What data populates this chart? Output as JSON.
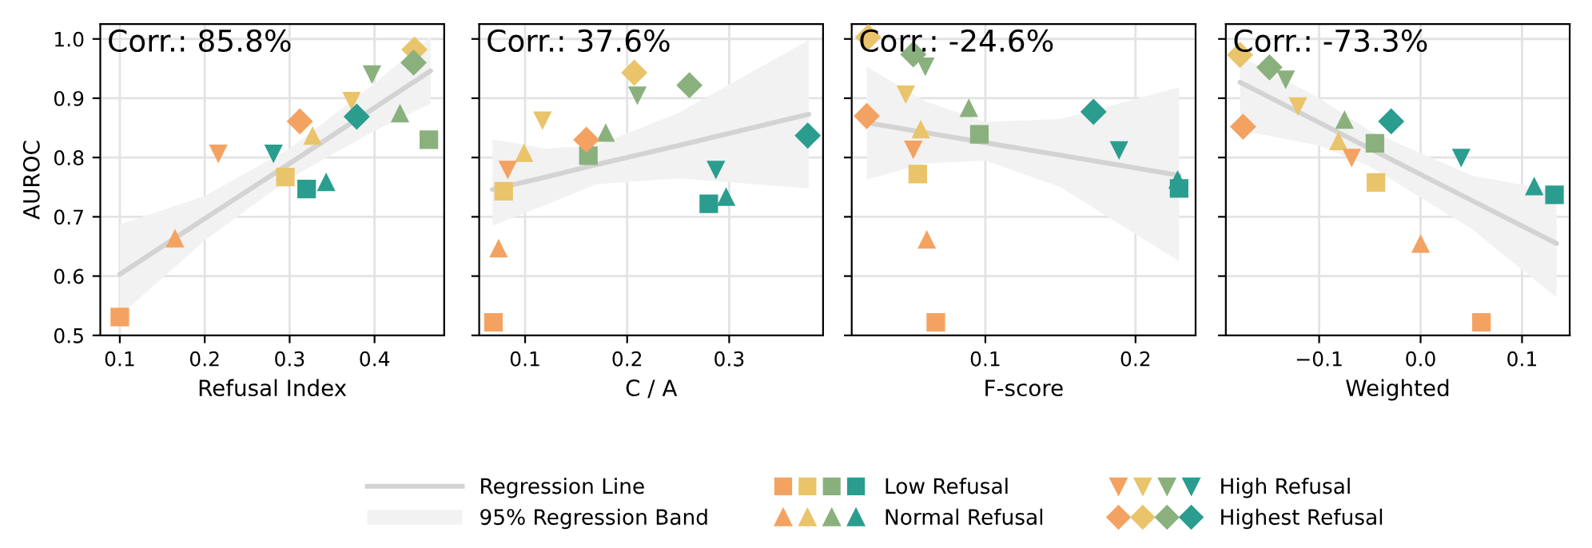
{
  "chart_data": [
    {
      "type": "scatter",
      "title": "Corr.: 85.8%",
      "xlabel": "Refusal Index",
      "ylabel": "AUROC",
      "xlim": [
        0.077,
        0.482
      ],
      "ylim": [
        0.5,
        1.025
      ],
      "xticks": [
        0.1,
        0.2,
        0.3,
        0.4
      ],
      "yticks": [
        0.5,
        0.6,
        0.7,
        0.8,
        0.9,
        {
          "value": 1.0,
          "label": "1.0"
        }
      ],
      "grid": true,
      "legend": "bottom",
      "annotations": [
        "95% Regression Band"
      ],
      "series": [
        {
          "name": "Regression Line",
          "type": "line",
          "color": "#d3d3d3",
          "x": [
            0.1,
            0.2,
            0.3,
            0.4,
            0.466
          ],
          "values": [
            0.603,
            0.697,
            0.79,
            0.884,
            0.946
          ],
          "lower": [
            0.533,
            0.66,
            0.765,
            0.845,
            0.891
          ],
          "upper": [
            0.687,
            0.735,
            0.815,
            0.925,
            1.003
          ]
        },
        {
          "name": "Low Refusal",
          "marker": "square",
          "color": "#808080",
          "x": [
            0.1,
            0.295,
            0.464,
            0.32
          ],
          "values": [
            0.531,
            0.767,
            0.83,
            0.747
          ],
          "colors": [
            "#f4a261",
            "#e9c46a",
            "#8ab17d",
            "#2a9d8f"
          ]
        },
        {
          "name": "Normal Refusal",
          "marker": "triangle",
          "color": "#808080",
          "x": [
            0.165,
            0.327,
            0.43,
            0.343
          ],
          "values": [
            0.664,
            0.837,
            0.875,
            0.759
          ],
          "colors": [
            "#f4a261",
            "#e9c46a",
            "#8ab17d",
            "#2a9d8f"
          ]
        },
        {
          "name": "High Refusal",
          "marker": "triangle_down",
          "color": "#808080",
          "x": [
            0.216,
            0.373,
            0.397,
            0.281
          ],
          "values": [
            0.806,
            0.895,
            0.94,
            0.806
          ],
          "colors": [
            "#f4a261",
            "#e9c46a",
            "#8ab17d",
            "#2a9d8f"
          ]
        },
        {
          "name": "Highest Refusal",
          "marker": "diamond",
          "color": "#808080",
          "x": [
            0.312,
            0.447,
            0.446,
            0.379
          ],
          "values": [
            0.861,
            0.982,
            0.96,
            0.869
          ],
          "colors": [
            "#f4a261",
            "#e9c46a",
            "#8ab17d",
            "#2a9d8f"
          ]
        }
      ]
    },
    {
      "type": "scatter",
      "title": "Corr.: 37.6%",
      "xlabel": "C / A",
      "xlim": [
        0.055,
        0.392
      ],
      "ylim": [
        0.5,
        1.025
      ],
      "xticks": [
        0.1,
        0.2,
        0.3
      ],
      "yticks": [
        0.5,
        0.6,
        0.7,
        0.8,
        0.9,
        1.0
      ],
      "tick_labels": "x",
      "grid": true,
      "series": [
        {
          "type": "line",
          "color": "#d3d3d3",
          "x": [
            0.068,
            0.12,
            0.17,
            0.25,
            0.378
          ],
          "values": [
            0.746,
            0.767,
            0.788,
            0.82,
            0.873
          ],
          "lower": [
            0.685,
            0.72,
            0.755,
            0.765,
            0.748
          ],
          "upper": [
            0.831,
            0.815,
            0.82,
            0.875,
            0.998
          ]
        },
        {
          "marker": "square",
          "color": "#808080",
          "x": [
            0.069,
            0.079,
            0.162,
            0.28
          ],
          "values": [
            0.522,
            0.743,
            0.803,
            0.722
          ],
          "colors": [
            "#f4a261",
            "#e9c46a",
            "#8ab17d",
            "#2a9d8f"
          ]
        },
        {
          "marker": "triangle",
          "color": "#808080",
          "x": [
            0.074,
            0.099,
            0.179,
            0.297
          ],
          "values": [
            0.647,
            0.808,
            0.842,
            0.734
          ],
          "colors": [
            "#f4a261",
            "#e9c46a",
            "#8ab17d",
            "#2a9d8f"
          ]
        },
        {
          "marker": "triangle_down",
          "color": "#808080",
          "x": [
            0.083,
            0.117,
            0.21,
            0.287
          ],
          "values": [
            0.779,
            0.862,
            0.904,
            0.779
          ],
          "colors": [
            "#f4a261",
            "#e9c46a",
            "#8ab17d",
            "#2a9d8f"
          ]
        },
        {
          "marker": "diamond",
          "color": "#808080",
          "x": [
            0.16,
            0.207,
            0.261,
            0.377
          ],
          "values": [
            0.83,
            0.943,
            0.922,
            0.837
          ],
          "colors": [
            "#f4a261",
            "#e9c46a",
            "#8ab17d",
            "#2a9d8f"
          ]
        }
      ]
    },
    {
      "type": "scatter",
      "title": "Corr.: -24.6%",
      "xlabel": "F-score",
      "xlim": [
        0.011,
        0.24
      ],
      "ylim": [
        0.5,
        1.025
      ],
      "xticks": [
        0.1,
        0.2
      ],
      "yticks": [
        0.5,
        0.6,
        0.7,
        0.8,
        0.9,
        1.0
      ],
      "tick_labels": "x",
      "grid": true,
      "series": [
        {
          "type": "line",
          "color": "#d3d3d3",
          "x": [
            0.021,
            0.06,
            0.1,
            0.15,
            0.229
          ],
          "values": [
            0.859,
            0.842,
            0.825,
            0.804,
            0.77
          ],
          "lower": [
            0.763,
            0.79,
            0.795,
            0.75,
            0.625
          ],
          "upper": [
            0.953,
            0.895,
            0.86,
            0.865,
            0.918
          ]
        },
        {
          "marker": "square",
          "color": "#808080",
          "x": [
            0.067,
            0.055,
            0.096,
            0.229
          ],
          "values": [
            0.522,
            0.772,
            0.839,
            0.748
          ],
          "colors": [
            "#f4a261",
            "#e9c46a",
            "#8ab17d",
            "#2a9d8f"
          ]
        },
        {
          "marker": "triangle",
          "color": "#808080",
          "x": [
            0.061,
            0.057,
            0.089,
            0.228
          ],
          "values": [
            0.662,
            0.848,
            0.884,
            0.763
          ],
          "colors": [
            "#f4a261",
            "#e9c46a",
            "#8ab17d",
            "#2a9d8f"
          ]
        },
        {
          "marker": "triangle_down",
          "color": "#808080",
          "x": [
            0.052,
            0.047,
            0.06,
            0.189
          ],
          "values": [
            0.813,
            0.906,
            0.953,
            0.812
          ],
          "colors": [
            "#f4a261",
            "#e9c46a",
            "#8ab17d",
            "#2a9d8f"
          ]
        },
        {
          "marker": "diamond",
          "color": "#808080",
          "x": [
            0.021,
            0.022,
            0.052,
            0.172
          ],
          "values": [
            0.87,
            1.003,
            0.974,
            0.877
          ],
          "colors": [
            "#f4a261",
            "#e9c46a",
            "#8ab17d",
            "#2a9d8f"
          ]
        }
      ]
    },
    {
      "type": "scatter",
      "title": "Corr.: -73.3%",
      "xlabel": "Weighted",
      "xlim": [
        -0.192,
        0.147
      ],
      "ylim": [
        0.5,
        1.025
      ],
      "xticks": [
        {
          "value": -0.1,
          "label": "−0.1"
        },
        {
          "value": 0.0,
          "label": "0.0"
        },
        0.1
      ],
      "yticks": [
        0.5,
        0.6,
        0.7,
        0.8,
        0.9,
        1.0
      ],
      "tick_labels": "x",
      "grid": true,
      "series": [
        {
          "type": "line",
          "color": "#d3d3d3",
          "x": [
            -0.178,
            -0.1,
            -0.05,
            0.05,
            0.134
          ],
          "values": [
            0.927,
            0.859,
            0.815,
            0.728,
            0.655
          ],
          "lower": [
            0.846,
            0.82,
            0.785,
            0.68,
            0.564
          ],
          "upper": [
            0.971,
            0.9,
            0.845,
            0.77,
            0.743
          ]
        },
        {
          "marker": "square",
          "color": "#808080",
          "x": [
            0.06,
            -0.044,
            -0.045,
            0.132
          ],
          "values": [
            0.522,
            0.758,
            0.824,
            0.737
          ],
          "colors": [
            "#f4a261",
            "#e9c46a",
            "#8ab17d",
            "#2a9d8f"
          ]
        },
        {
          "marker": "triangle",
          "color": "#808080",
          "x": [
            0.0,
            -0.081,
            -0.075,
            0.112
          ],
          "values": [
            0.655,
            0.828,
            0.864,
            0.752
          ],
          "colors": [
            "#f4a261",
            "#e9c46a",
            "#8ab17d",
            "#2a9d8f"
          ]
        },
        {
          "marker": "triangle_down",
          "color": "#808080",
          "x": [
            -0.068,
            -0.121,
            -0.133,
            0.04
          ],
          "values": [
            0.799,
            0.886,
            0.931,
            0.799
          ],
          "colors": [
            "#f4a261",
            "#e9c46a",
            "#8ab17d",
            "#2a9d8f"
          ]
        },
        {
          "marker": "diamond",
          "color": "#808080",
          "x": [
            -0.175,
            -0.178,
            -0.149,
            -0.029
          ],
          "values": [
            0.852,
            0.973,
            0.952,
            0.861
          ],
          "colors": [
            "#f4a261",
            "#e9c46a",
            "#8ab17d",
            "#2a9d8f"
          ]
        }
      ]
    }
  ]
}
